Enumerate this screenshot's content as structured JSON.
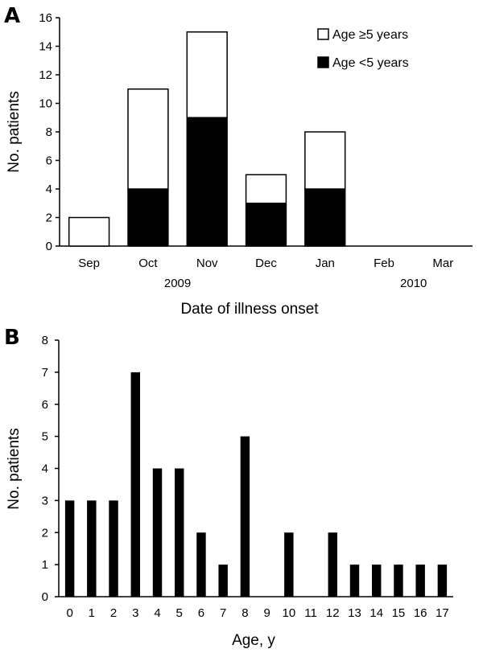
{
  "chart_data": [
    {
      "panel_label": "A",
      "type": "bar",
      "stacked": true,
      "categories": [
        "Sep",
        "Oct",
        "Nov",
        "Dec",
        "Jan",
        "Feb",
        "Mar"
      ],
      "year_labels": [
        {
          "text": "2009",
          "category": "Oct",
          "offset": 0.5
        },
        {
          "text": "2010",
          "category": "Jan",
          "offset": 1.5
        }
      ],
      "series": [
        {
          "name": "Age <5 years",
          "values": [
            0,
            4,
            9,
            3,
            4,
            0,
            0
          ],
          "color": "#000000"
        },
        {
          "name": "Age ≥5 years",
          "values": [
            2,
            7,
            6,
            2,
            4,
            0,
            0
          ],
          "color": "#ffffff"
        }
      ],
      "legend_order": [
        1,
        0
      ],
      "legend_position": "top-right",
      "xlabel": "Date of illness onset",
      "ylabel": "No. patients",
      "ylim": [
        0,
        16
      ],
      "yticks": [
        0,
        2,
        4,
        6,
        8,
        10,
        12,
        14,
        16
      ],
      "grid": false
    },
    {
      "panel_label": "B",
      "type": "bar",
      "categories": [
        "0",
        "1",
        "2",
        "3",
        "4",
        "5",
        "6",
        "7",
        "8",
        "9",
        "10",
        "11",
        "12",
        "13",
        "14",
        "15",
        "16",
        "17"
      ],
      "values": [
        3,
        3,
        3,
        7,
        4,
        4,
        2,
        1,
        5,
        0,
        2,
        0,
        2,
        1,
        1,
        1,
        1,
        1
      ],
      "color": "#000000",
      "xlabel": "Age, y",
      "ylabel": "No. patients",
      "ylim": [
        0,
        8
      ],
      "yticks": [
        0,
        1,
        2,
        3,
        4,
        5,
        6,
        7,
        8
      ],
      "grid": false
    }
  ]
}
